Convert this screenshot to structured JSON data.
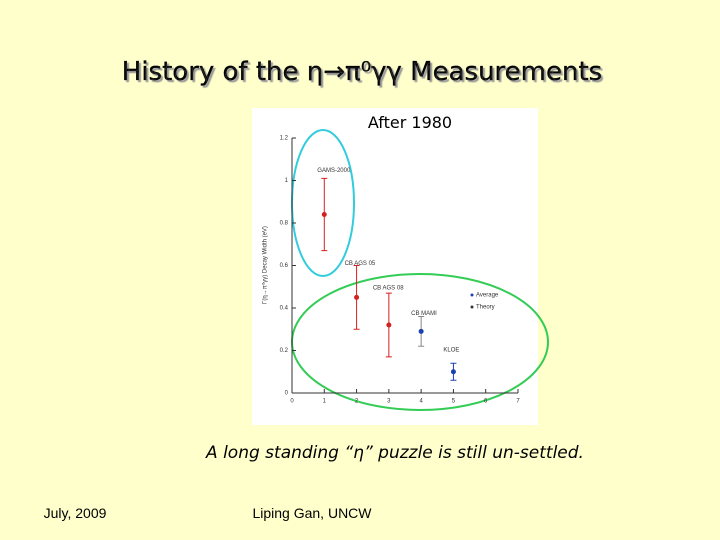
{
  "slide": {
    "title": "History of the η→π⁰γγ Measurements",
    "caption": "A long standing “η” puzzle is still un-settled.",
    "footer_left": "July, 2009",
    "footer_center": "Liping Gan, UNCW"
  },
  "chart_data": {
    "type": "scatter",
    "subtitle": "After 1980",
    "y_label": "Γ(η→π⁰γγ) Decay Width (eV)",
    "x": [
      1,
      2,
      3,
      4,
      5
    ],
    "values": [
      0.84,
      0.45,
      0.32,
      0.29,
      0.1
    ],
    "errors": [
      0.17,
      0.15,
      0.15,
      0.07,
      0.04
    ],
    "point_labels": [
      "GAMS-2000",
      "CB AGS 05",
      "CB AGS 08",
      "CB MAMI",
      "KLOE"
    ],
    "colors": [
      "#d62020",
      "#d62020",
      "#d62020",
      "#1a3fb0",
      "#1a3fb0"
    ],
    "legend": [
      {
        "name": "Average",
        "color": "#1a3fb0"
      },
      {
        "name": "Theory",
        "color": "#333333"
      }
    ],
    "xlim": [
      0,
      7
    ],
    "xticks": [
      0,
      1,
      2,
      3,
      4,
      5,
      6,
      7
    ],
    "ylim": [
      0,
      1.2
    ],
    "yticks": [
      0,
      0.2,
      0.4,
      0.6,
      0.8,
      1,
      1.2
    ]
  }
}
